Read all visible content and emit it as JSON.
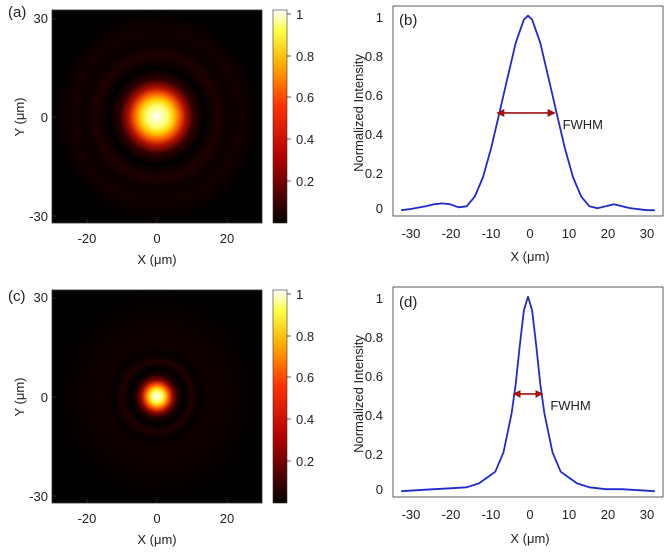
{
  "chart_data": [
    {
      "panel": "(a)",
      "type": "heatmap",
      "xlabel": "X (μm)",
      "ylabel": "Y (μm)",
      "xlim": [
        -32,
        32
      ],
      "ylim": [
        -32,
        32
      ],
      "xticks": [
        "-20",
        "0",
        "20"
      ],
      "yticks": [
        "30",
        "0",
        "-30"
      ],
      "spot_fwhm_um": 12,
      "colorbar": {
        "range": [
          0,
          1
        ],
        "ticks": [
          "1",
          "0.8",
          "0.6",
          "0.4",
          "0.2"
        ]
      }
    },
    {
      "panel": "(b)",
      "type": "line",
      "xlabel": "X (μm)",
      "ylabel": "Normalized Intensity",
      "xlim": [
        -33,
        33
      ],
      "ylim": [
        -0.03,
        1.05
      ],
      "xticks": [
        "-30",
        "-20",
        "-10",
        "0",
        "10",
        "20",
        "30"
      ],
      "yticks": [
        "1",
        "0.8",
        "0.6",
        "0.4",
        "0.2",
        "0"
      ],
      "annotation": {
        "label": "FWHM",
        "x_from": -7.5,
        "x_to": 6.5,
        "y": 0.5
      },
      "x": [
        -31,
        -29,
        -27,
        -25,
        -23,
        -21,
        -19,
        -17,
        -15,
        -13,
        -11,
        -9,
        -7,
        -5,
        -3,
        -1,
        0,
        1,
        3,
        5,
        7,
        9,
        11,
        13,
        15,
        17,
        19,
        21,
        23,
        25,
        27,
        29,
        31
      ],
      "values": [
        0.0,
        0.005,
        0.012,
        0.02,
        0.03,
        0.035,
        0.03,
        0.015,
        0.02,
        0.07,
        0.17,
        0.32,
        0.5,
        0.68,
        0.86,
        0.98,
        1.0,
        0.98,
        0.86,
        0.68,
        0.5,
        0.32,
        0.17,
        0.07,
        0.02,
        0.01,
        0.02,
        0.03,
        0.02,
        0.01,
        0.005,
        0.0,
        0.0
      ]
    },
    {
      "panel": "(c)",
      "type": "heatmap",
      "xlabel": "X (μm)",
      "ylabel": "Y (μm)",
      "xlim": [
        -32,
        32
      ],
      "ylim": [
        -32,
        32
      ],
      "xticks": [
        "-20",
        "0",
        "20"
      ],
      "yticks": [
        "30",
        "0",
        "-30"
      ],
      "spot_fwhm_um": 6,
      "colorbar": {
        "range": [
          0,
          1
        ],
        "ticks": [
          "1",
          "0.8",
          "0.6",
          "0.4",
          "0.2"
        ]
      }
    },
    {
      "panel": "(d)",
      "type": "line",
      "xlabel": "X (μm)",
      "ylabel": "Normalized Intensity",
      "xlim": [
        -33,
        33
      ],
      "ylim": [
        -0.03,
        1.05
      ],
      "xticks": [
        "-30",
        "-20",
        "-10",
        "0",
        "10",
        "20",
        "30"
      ],
      "yticks": [
        "1",
        "0.8",
        "0.6",
        "0.4",
        "0.2",
        "0"
      ],
      "annotation": {
        "label": "FWHM",
        "x_from": -3.5,
        "x_to": 3.5,
        "y": 0.5
      },
      "x": [
        -31,
        -27,
        -23,
        -19,
        -15,
        -12,
        -10,
        -8,
        -6,
        -4,
        -3,
        -2,
        -1,
        0,
        1,
        2,
        3,
        4,
        6,
        8,
        10,
        12,
        15,
        19,
        23,
        27,
        31
      ],
      "values": [
        0.0,
        0.005,
        0.01,
        0.015,
        0.02,
        0.04,
        0.07,
        0.1,
        0.2,
        0.4,
        0.55,
        0.75,
        0.93,
        1.0,
        0.93,
        0.75,
        0.55,
        0.4,
        0.2,
        0.1,
        0.07,
        0.04,
        0.02,
        0.01,
        0.01,
        0.005,
        0.0
      ]
    }
  ]
}
